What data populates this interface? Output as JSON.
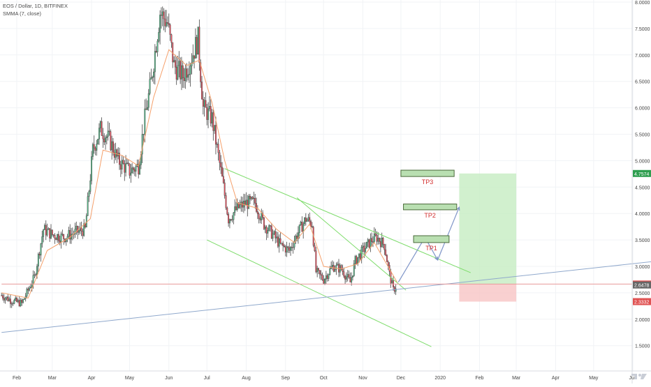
{
  "title": "EOS / Dollar, 1D, BITFINEX",
  "indicator": "SMMA (7, close)",
  "colors": {
    "up": "#53b987",
    "down": "#eb4d5c",
    "wick": "#444444",
    "smma": "#f5a06b",
    "channel": "#7ddc6a",
    "trend": "#8fa8cc",
    "price_line": "#e89a9a",
    "profit_fill": "#c6ecc2",
    "loss_fill": "#f8c4c4",
    "tp_fill": "#b9dfb1",
    "tp_border": "#4a6a3a",
    "tp_text": "#d32f2f",
    "arrow": "#7f95c8",
    "grid": "#f1f3f6",
    "axis_text": "#444444"
  },
  "chart_data": {
    "type": "candlestick",
    "symbol": "EOS / Dollar",
    "timeframe": "1D",
    "exchange": "BITFINEX",
    "ylim": [
      1.2,
      8.0
    ],
    "y_ticks": [
      "1.5000",
      "2.0000",
      "2.5000",
      "3.0000",
      "3.5000",
      "4.0000",
      "4.5000",
      "5.0000",
      "5.5000",
      "6.0000",
      "6.5000",
      "7.0000",
      "7.5000",
      "8.0000"
    ],
    "y_tick_values": [
      1.5,
      2.0,
      2.5,
      3.0,
      3.5,
      4.0,
      4.5,
      5.0,
      5.5,
      6.0,
      6.5,
      7.0,
      7.5,
      8.0
    ],
    "x_ticks": [
      {
        "label": "Feb",
        "date": "2019-02-01"
      },
      {
        "label": "Mar",
        "date": "2019-03-01"
      },
      {
        "label": "Apr",
        "date": "2019-04-01"
      },
      {
        "label": "May",
        "date": "2019-05-01"
      },
      {
        "label": "Jun",
        "date": "2019-06-01"
      },
      {
        "label": "Jul",
        "date": "2019-07-01"
      },
      {
        "label": "Aug",
        "date": "2019-08-01"
      },
      {
        "label": "Sep",
        "date": "2019-09-01"
      },
      {
        "label": "Oct",
        "date": "2019-10-01"
      },
      {
        "label": "Nov",
        "date": "2019-11-01"
      },
      {
        "label": "Dec",
        "date": "2019-12-01"
      },
      {
        "label": "2020",
        "date": "2020-01-01"
      },
      {
        "label": "Feb",
        "date": "2020-02-01"
      },
      {
        "label": "Mar",
        "date": "2020-03-01"
      },
      {
        "label": "Apr",
        "date": "2020-04-01"
      },
      {
        "label": "May",
        "date": "2020-05-01"
      },
      {
        "label": "Jun",
        "date": "2020-06-01"
      }
    ],
    "price_path": [
      [
        "2019-01-20",
        2.45
      ],
      [
        "2019-01-28",
        2.35
      ],
      [
        "2019-02-05",
        2.3
      ],
      [
        "2019-02-15",
        2.8
      ],
      [
        "2019-02-22",
        3.7
      ],
      [
        "2019-03-01",
        3.6
      ],
      [
        "2019-03-10",
        3.55
      ],
      [
        "2019-03-20",
        3.65
      ],
      [
        "2019-03-27",
        3.7
      ],
      [
        "2019-04-02",
        5.2
      ],
      [
        "2019-04-08",
        5.6
      ],
      [
        "2019-04-15",
        5.4
      ],
      [
        "2019-04-22",
        5.0
      ],
      [
        "2019-05-01",
        4.8
      ],
      [
        "2019-05-08",
        4.9
      ],
      [
        "2019-05-13",
        5.8
      ],
      [
        "2019-05-18",
        6.5
      ],
      [
        "2019-05-25",
        7.8
      ],
      [
        "2019-05-31",
        7.6
      ],
      [
        "2019-06-05",
        6.8
      ],
      [
        "2019-06-12",
        6.6
      ],
      [
        "2019-06-18",
        6.9
      ],
      [
        "2019-06-24",
        7.3
      ],
      [
        "2019-06-28",
        6.0
      ],
      [
        "2019-07-05",
        5.8
      ],
      [
        "2019-07-12",
        4.8
      ],
      [
        "2019-07-18",
        3.9
      ],
      [
        "2019-07-25",
        4.1
      ],
      [
        "2019-08-01",
        4.2
      ],
      [
        "2019-08-08",
        4.2
      ],
      [
        "2019-08-15",
        3.8
      ],
      [
        "2019-08-22",
        3.6
      ],
      [
        "2019-08-28",
        3.4
      ],
      [
        "2019-09-04",
        3.3
      ],
      [
        "2019-09-10",
        3.6
      ],
      [
        "2019-09-17",
        3.9
      ],
      [
        "2019-09-22",
        3.8
      ],
      [
        "2019-09-25",
        2.9
      ],
      [
        "2019-10-01",
        2.75
      ],
      [
        "2019-10-08",
        3.0
      ],
      [
        "2019-10-15",
        2.95
      ],
      [
        "2019-10-22",
        2.7
      ],
      [
        "2019-10-26",
        3.1
      ],
      [
        "2019-11-01",
        3.3
      ],
      [
        "2019-11-08",
        3.5
      ],
      [
        "2019-11-12",
        3.55
      ],
      [
        "2019-11-18",
        3.4
      ],
      [
        "2019-11-22",
        2.85
      ],
      [
        "2019-11-25",
        2.55
      ],
      [
        "2019-11-28",
        2.65
      ]
    ],
    "smma_path": [
      [
        "2019-01-20",
        2.5
      ],
      [
        "2019-02-10",
        2.4
      ],
      [
        "2019-02-25",
        3.3
      ],
      [
        "2019-03-15",
        3.55
      ],
      [
        "2019-03-31",
        3.9
      ],
      [
        "2019-04-10",
        5.2
      ],
      [
        "2019-04-25",
        5.1
      ],
      [
        "2019-05-08",
        4.9
      ],
      [
        "2019-05-20",
        6.2
      ],
      [
        "2019-06-01",
        7.1
      ],
      [
        "2019-06-15",
        6.8
      ],
      [
        "2019-06-25",
        6.9
      ],
      [
        "2019-07-05",
        6.1
      ],
      [
        "2019-07-15",
        5.0
      ],
      [
        "2019-07-25",
        4.2
      ],
      [
        "2019-08-10",
        4.1
      ],
      [
        "2019-08-25",
        3.7
      ],
      [
        "2019-09-08",
        3.45
      ],
      [
        "2019-09-20",
        3.8
      ],
      [
        "2019-10-01",
        3.0
      ],
      [
        "2019-10-15",
        2.95
      ],
      [
        "2019-10-28",
        3.05
      ],
      [
        "2019-11-10",
        3.45
      ],
      [
        "2019-11-22",
        2.95
      ],
      [
        "2019-11-28",
        2.7
      ]
    ],
    "lines": [
      {
        "name": "channel-upper",
        "color": "channel",
        "from": [
          "2019-07-15",
          4.85
        ],
        "to": [
          "2020-01-25",
          2.88
        ]
      },
      {
        "name": "channel-inner",
        "color": "channel",
        "from": [
          "2019-09-10",
          4.3
        ],
        "to": [
          "2019-12-05",
          2.55
        ]
      },
      {
        "name": "channel-lower",
        "color": "channel",
        "from": [
          "2019-07-01",
          3.5
        ],
        "to": [
          "2019-12-25",
          1.48
        ]
      },
      {
        "name": "trend-support",
        "color": "trend",
        "from": [
          "2019-01-20",
          1.75
        ],
        "to": [
          "2020-06-20",
          3.1
        ]
      },
      {
        "name": "price-line",
        "color": "price_line",
        "from": [
          "2019-01-20",
          2.6657
        ],
        "to": [
          "2020-06-25",
          2.6657
        ]
      }
    ],
    "arrows": [
      [
        [
          "2019-11-29",
          2.7
        ],
        [
          "2019-12-20",
          3.55
        ]
      ],
      [
        [
          "2019-12-20",
          3.55
        ],
        [
          "2019-12-30",
          3.12
        ]
      ],
      [
        [
          "2019-12-30",
          3.12
        ],
        [
          "2020-01-16",
          4.12
        ]
      ]
    ],
    "position": {
      "from": "2020-01-16",
      "to": "2020-03-01",
      "entry": 2.6657,
      "target": 4.7574,
      "stop": 2.3332
    },
    "targets": [
      {
        "label": "TP3",
        "y1": 4.7,
        "y2": 4.82,
        "from": "2019-12-01",
        "to": "2020-01-12"
      },
      {
        "label": "TP2",
        "y1": 4.07,
        "y2": 4.18,
        "from": "2019-12-03",
        "to": "2020-01-14"
      },
      {
        "label": "TP1",
        "y1": 3.45,
        "y2": 3.58,
        "from": "2019-12-11",
        "to": "2020-01-08"
      }
    ],
    "price_labels": [
      {
        "value": "4.7574",
        "price": 4.7574,
        "color": "#2e9e4f"
      },
      {
        "value": "2.6657",
        "price": 2.6657,
        "color": "#e05252"
      },
      {
        "value": "2.6478",
        "price": 2.6478,
        "color": "#666666"
      },
      {
        "value": "2.3332",
        "price": 2.3332,
        "color": "#e05252"
      }
    ]
  }
}
